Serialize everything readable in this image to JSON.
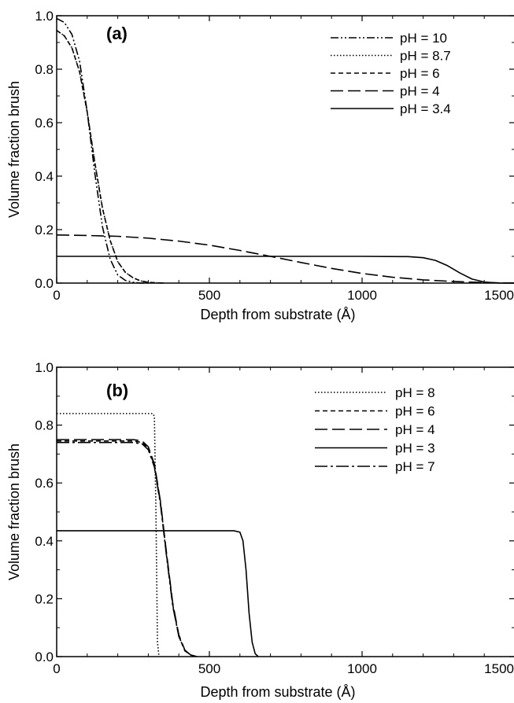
{
  "chart_data": [
    {
      "type": "line",
      "panel_label": "(a)",
      "xlabel": "Depth from substrate (Å)",
      "ylabel": "Volume fraction brush",
      "xlim": [
        0,
        1500
      ],
      "ylim": [
        0,
        1.0
      ],
      "xticks": [
        0,
        500,
        1000,
        1500
      ],
      "yticks": [
        0.0,
        0.2,
        0.4,
        0.6,
        0.8,
        1.0
      ],
      "xtick_labels": [
        "0",
        "500",
        "1000",
        "1500"
      ],
      "ytick_labels": [
        "0.0",
        "0.2",
        "0.4",
        "0.6",
        "0.8",
        "1.0"
      ],
      "grid": false,
      "legend_position": "top-right",
      "series": [
        {
          "name": "pH = 10",
          "dash": "dash-dot-dot",
          "x": [
            0,
            25,
            50,
            75,
            100,
            125,
            150,
            175,
            200,
            225,
            250,
            275,
            300
          ],
          "y": [
            0.99,
            0.975,
            0.93,
            0.83,
            0.64,
            0.41,
            0.21,
            0.09,
            0.03,
            0.01,
            0.003,
            0.0,
            0.0
          ]
        },
        {
          "name": "pH = 8.7",
          "dash": "dot",
          "x": [
            0,
            25,
            50,
            75,
            100,
            125,
            150,
            175,
            200,
            225,
            250,
            275,
            300,
            325,
            350
          ],
          "y": [
            0.945,
            0.925,
            0.88,
            0.79,
            0.64,
            0.45,
            0.28,
            0.16,
            0.08,
            0.04,
            0.02,
            0.008,
            0.003,
            0.001,
            0.0
          ]
        },
        {
          "name": "pH = 6",
          "dash": "short-dash",
          "x": [
            0,
            25,
            50,
            75,
            100,
            125,
            150,
            175,
            200,
            225,
            250,
            275,
            300,
            325,
            350
          ],
          "y": [
            0.945,
            0.925,
            0.88,
            0.79,
            0.64,
            0.45,
            0.28,
            0.16,
            0.08,
            0.04,
            0.02,
            0.008,
            0.003,
            0.001,
            0.0
          ]
        },
        {
          "name": "pH = 4",
          "dash": "long-dash",
          "x": [
            0,
            100,
            200,
            300,
            400,
            500,
            600,
            700,
            800,
            900,
            1000,
            1100,
            1200,
            1300,
            1400,
            1500
          ],
          "y": [
            0.18,
            0.178,
            0.175,
            0.168,
            0.157,
            0.142,
            0.122,
            0.1,
            0.077,
            0.055,
            0.036,
            0.022,
            0.012,
            0.006,
            0.002,
            0.0
          ]
        },
        {
          "name": "pH = 3.4",
          "dash": "solid",
          "x": [
            0,
            200,
            400,
            600,
            800,
            1000,
            1150,
            1200,
            1240,
            1280,
            1320,
            1360,
            1400,
            1450,
            1500
          ],
          "y": [
            0.1,
            0.1,
            0.1,
            0.1,
            0.1,
            0.1,
            0.099,
            0.095,
            0.085,
            0.065,
            0.038,
            0.015,
            0.004,
            0.0,
            0.0
          ]
        }
      ]
    },
    {
      "type": "line",
      "panel_label": "(b)",
      "xlabel": "Depth from substrate (Å)",
      "ylabel": "Volume fraction brush",
      "xlim": [
        0,
        1500
      ],
      "ylim": [
        0,
        1.0
      ],
      "xticks": [
        0,
        500,
        1000,
        1500
      ],
      "yticks": [
        0.0,
        0.2,
        0.4,
        0.6,
        0.8,
        1.0
      ],
      "xtick_labels": [
        "0",
        "500",
        "1000",
        "1500"
      ],
      "ytick_labels": [
        "0.0",
        "0.2",
        "0.4",
        "0.6",
        "0.8",
        "1.0"
      ],
      "grid": false,
      "legend_position": "top-right",
      "series": [
        {
          "name": "pH = 8",
          "dash": "dot",
          "x": [
            0,
            315,
            320,
            325,
            330,
            335
          ],
          "y": [
            0.84,
            0.84,
            0.83,
            0.5,
            0.05,
            0.0
          ]
        },
        {
          "name": "pH = 6",
          "dash": "short-dash",
          "x": [
            0,
            250,
            280,
            300,
            320,
            340,
            360,
            380,
            400,
            420,
            440,
            460
          ],
          "y": [
            0.745,
            0.745,
            0.74,
            0.72,
            0.66,
            0.53,
            0.35,
            0.18,
            0.07,
            0.02,
            0.005,
            0.0
          ]
        },
        {
          "name": "pH = 4",
          "dash": "long-dash",
          "x": [
            0,
            250,
            280,
            300,
            320,
            340,
            360,
            380,
            400,
            420,
            440,
            460
          ],
          "y": [
            0.75,
            0.75,
            0.745,
            0.725,
            0.665,
            0.535,
            0.355,
            0.185,
            0.075,
            0.022,
            0.005,
            0.0
          ]
        },
        {
          "name": "pH = 3",
          "dash": "solid",
          "x": [
            0,
            580,
            600,
            610,
            620,
            630,
            640,
            650,
            660
          ],
          "y": [
            0.435,
            0.435,
            0.43,
            0.4,
            0.3,
            0.15,
            0.05,
            0.01,
            0.0
          ]
        },
        {
          "name": "pH = 7",
          "dash": "long-dash-dot",
          "x": [
            0,
            250,
            280,
            300,
            320,
            340,
            360,
            380,
            400,
            420,
            440,
            460
          ],
          "y": [
            0.74,
            0.74,
            0.735,
            0.715,
            0.655,
            0.525,
            0.345,
            0.175,
            0.07,
            0.02,
            0.005,
            0.0
          ]
        }
      ]
    }
  ]
}
